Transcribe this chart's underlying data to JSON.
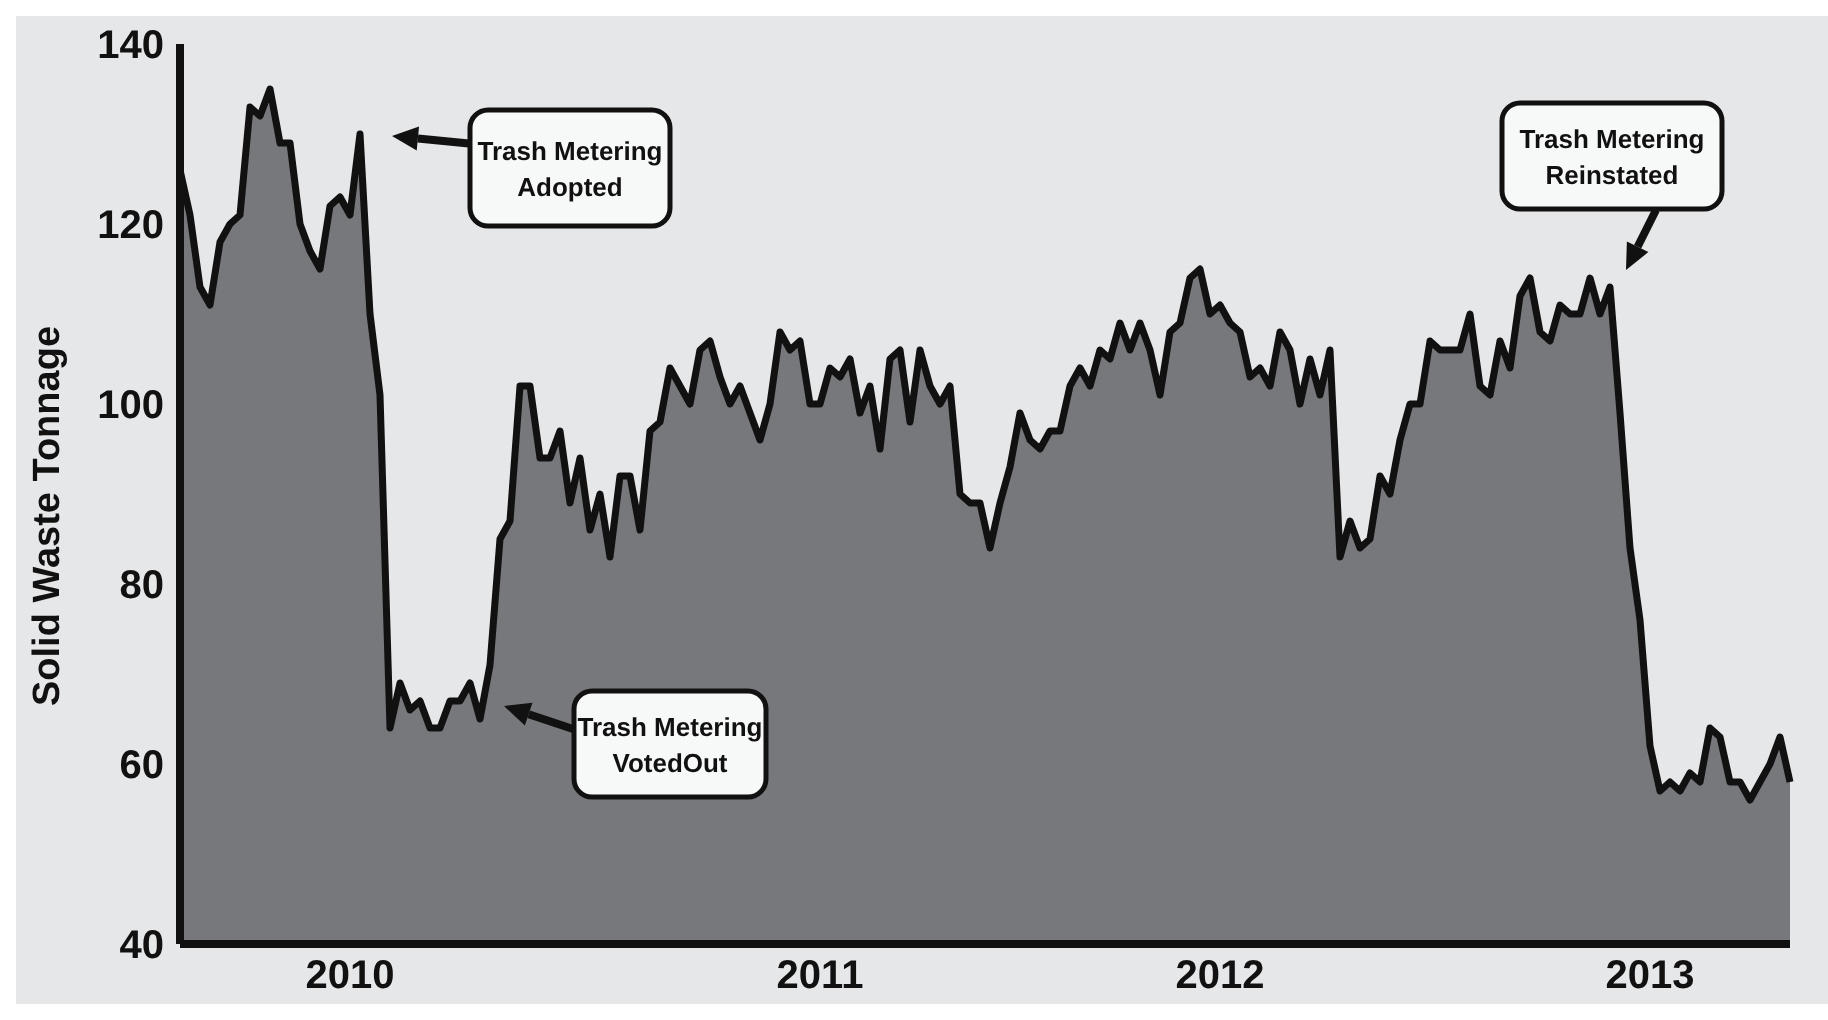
{
  "chart_data": {
    "type": "area",
    "ylabel": "Solid Waste Tonnage",
    "color": "#77787b",
    "categories": [
      null,
      null,
      null,
      null,
      null,
      null,
      null,
      null,
      null,
      null,
      null,
      null,
      null,
      null,
      null,
      null,
      null,
      "2010",
      null,
      null,
      null,
      null,
      null,
      null,
      null,
      null,
      null,
      null,
      null,
      null,
      null,
      null,
      null,
      null,
      null,
      null,
      null,
      null,
      null,
      null,
      null,
      null,
      null,
      null,
      null,
      null,
      null,
      null,
      null,
      null,
      null,
      null,
      null,
      null,
      null,
      null,
      null,
      null,
      null,
      null,
      null,
      null,
      null,
      null,
      "2011",
      null,
      null,
      null,
      null,
      null,
      null,
      null,
      null,
      null,
      null,
      null,
      null,
      null,
      null,
      null,
      null,
      null,
      null,
      null,
      null,
      null,
      null,
      null,
      null,
      null,
      null,
      null,
      null,
      null,
      null,
      null,
      null,
      null,
      null,
      null,
      null,
      null,
      null,
      null,
      "2012",
      null,
      null,
      null,
      null,
      null,
      null,
      null,
      null,
      null,
      null,
      null,
      null,
      null,
      null,
      null,
      null,
      null,
      null,
      null,
      null,
      null,
      null,
      null,
      null,
      null,
      null,
      null,
      null,
      null,
      null,
      null,
      null,
      null,
      null,
      null,
      null,
      null,
      null,
      null,
      null,
      null,
      null,
      "2013",
      null,
      null,
      null,
      null,
      null,
      null,
      null,
      null,
      null,
      null,
      null,
      null,
      null,
      null
    ],
    "values": [
      126,
      121,
      113,
      111,
      118,
      120,
      121,
      133,
      132,
      135,
      129,
      129,
      120,
      117,
      115,
      122,
      123,
      121,
      130,
      110,
      101,
      64,
      69,
      66,
      67,
      64,
      64,
      67,
      67,
      69,
      65,
      71,
      85,
      87,
      102,
      102,
      94,
      94,
      97,
      89,
      94,
      86,
      90,
      83,
      92,
      92,
      86,
      97,
      98,
      104,
      102,
      100,
      106,
      107,
      103,
      100,
      102,
      99,
      96,
      100,
      108,
      106,
      107,
      100,
      100,
      104,
      103,
      105,
      99,
      102,
      95,
      105,
      106,
      98,
      106,
      102,
      100,
      102,
      90,
      89,
      89,
      84,
      89,
      93,
      99,
      96,
      95,
      97,
      97,
      102,
      104,
      102,
      106,
      105,
      109,
      106,
      109,
      106,
      101,
      108,
      109,
      114,
      115,
      110,
      111,
      109,
      108,
      103,
      104,
      102,
      108,
      106,
      100,
      105,
      101,
      106,
      83,
      87,
      84,
      85,
      92,
      90,
      96,
      100,
      100,
      107,
      106,
      106,
      106,
      110,
      102,
      101,
      107,
      104,
      112,
      114,
      108,
      107,
      111,
      110,
      110,
      114,
      110,
      113,
      99,
      84,
      76,
      62,
      57,
      58,
      57,
      59,
      58,
      64,
      63,
      58,
      58,
      56,
      58,
      60,
      63,
      58
    ],
    "ylim": [
      40,
      140
    ],
    "yticks": [
      40,
      60,
      80,
      100,
      120,
      140
    ],
    "annotations": [
      "Trash Metering\nAdopted",
      "Trash Metering\nVotedOut",
      "Trash Metering\nReinstated"
    ]
  }
}
